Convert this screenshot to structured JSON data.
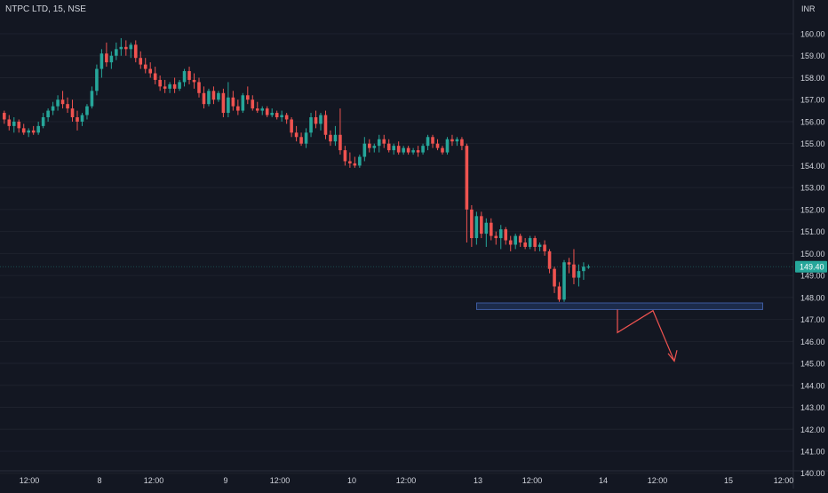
{
  "header": {
    "symbol": "NTPC LTD, 15, NSE",
    "currency": "INR"
  },
  "colors": {
    "background": "#131722",
    "up": "#26a69a",
    "down": "#ef5350",
    "axis_text": "#d1d4dc",
    "grid": "#1e222d",
    "zone_fill": "#1c2b4a",
    "zone_border": "#3d5a9e",
    "arrow": "#ef5350"
  },
  "chart_data": {
    "type": "candlestick",
    "title": "NTPC LTD, 15, NSE",
    "ylabel": "INR",
    "ylim": [
      139.45,
      161.05
    ],
    "yticks": [
      "160.00",
      "159.00",
      "158.00",
      "157.00",
      "156.00",
      "155.00",
      "154.00",
      "153.00",
      "152.00",
      "151.00",
      "150.00",
      "149.00",
      "148.00",
      "147.00",
      "146.00",
      "145.00",
      "144.00",
      "143.00",
      "142.00",
      "141.00",
      "140.00"
    ],
    "xticks": [
      "12:00",
      "8",
      "12:00",
      "9",
      "12:00",
      "10",
      "12:00",
      "13",
      "12:00",
      "14",
      "12:00",
      "15",
      "12:00"
    ],
    "last_price": "149.40",
    "candles_count": 125,
    "ohlc": [
      [
        156.4,
        156.5,
        155.9,
        156.1
      ],
      [
        156.1,
        156.3,
        155.6,
        155.8
      ],
      [
        155.8,
        156.2,
        155.5,
        156.0
      ],
      [
        156.0,
        156.1,
        155.5,
        155.7
      ],
      [
        155.7,
        155.9,
        155.4,
        155.5
      ],
      [
        155.5,
        155.7,
        155.3,
        155.6
      ],
      [
        155.6,
        155.8,
        155.4,
        155.5
      ],
      [
        155.5,
        156.0,
        155.4,
        155.8
      ],
      [
        155.8,
        156.4,
        155.7,
        156.2
      ],
      [
        156.2,
        156.6,
        156.0,
        156.5
      ],
      [
        156.5,
        156.9,
        156.3,
        156.7
      ],
      [
        156.7,
        157.2,
        156.5,
        157.0
      ],
      [
        157.0,
        157.4,
        156.6,
        156.8
      ],
      [
        156.8,
        157.1,
        156.4,
        156.6
      ],
      [
        156.6,
        157.0,
        156.0,
        156.2
      ],
      [
        156.2,
        156.5,
        155.6,
        156.0
      ],
      [
        156.0,
        156.4,
        155.8,
        156.3
      ],
      [
        156.3,
        156.8,
        156.1,
        156.7
      ],
      [
        156.7,
        157.6,
        156.6,
        157.4
      ],
      [
        157.4,
        158.6,
        157.2,
        158.4
      ],
      [
        158.4,
        159.3,
        158.0,
        159.1
      ],
      [
        159.1,
        159.6,
        158.5,
        158.7
      ],
      [
        158.7,
        159.2,
        158.4,
        159.0
      ],
      [
        159.0,
        159.6,
        158.8,
        159.3
      ],
      [
        159.3,
        159.8,
        159.0,
        159.4
      ],
      [
        159.4,
        159.7,
        159.0,
        159.3
      ],
      [
        159.3,
        159.6,
        158.9,
        159.5
      ],
      [
        159.5,
        159.7,
        158.7,
        158.9
      ],
      [
        158.9,
        159.2,
        158.4,
        158.6
      ],
      [
        158.6,
        158.9,
        158.2,
        158.4
      ],
      [
        158.4,
        158.7,
        158.0,
        158.2
      ],
      [
        158.2,
        158.5,
        157.7,
        157.9
      ],
      [
        157.9,
        158.1,
        157.4,
        157.6
      ],
      [
        157.6,
        157.9,
        157.3,
        157.5
      ],
      [
        157.5,
        157.8,
        157.3,
        157.7
      ],
      [
        157.7,
        158.0,
        157.3,
        157.5
      ],
      [
        157.5,
        157.9,
        157.4,
        157.8
      ],
      [
        157.8,
        158.4,
        157.6,
        158.3
      ],
      [
        158.3,
        158.5,
        157.7,
        157.9
      ],
      [
        157.9,
        158.2,
        157.5,
        157.8
      ],
      [
        157.8,
        158.0,
        157.1,
        157.3
      ],
      [
        157.3,
        157.6,
        156.6,
        156.8
      ],
      [
        156.8,
        157.5,
        156.7,
        157.4
      ],
      [
        157.4,
        157.6,
        156.8,
        157.0
      ],
      [
        157.0,
        157.4,
        156.9,
        157.3
      ],
      [
        157.3,
        157.5,
        156.2,
        156.4
      ],
      [
        156.4,
        157.8,
        156.2,
        157.1
      ],
      [
        157.1,
        157.4,
        156.5,
        156.7
      ],
      [
        156.7,
        157.0,
        156.3,
        156.5
      ],
      [
        156.5,
        157.3,
        156.4,
        157.2
      ],
      [
        157.2,
        157.6,
        156.8,
        157.0
      ],
      [
        157.0,
        157.2,
        156.5,
        156.6
      ],
      [
        156.6,
        156.9,
        156.4,
        156.5
      ],
      [
        156.5,
        156.7,
        156.3,
        156.6
      ],
      [
        156.6,
        156.7,
        156.2,
        156.3
      ],
      [
        156.3,
        156.6,
        156.2,
        156.4
      ],
      [
        156.4,
        156.5,
        156.1,
        156.2
      ],
      [
        156.2,
        156.5,
        156.0,
        156.3
      ],
      [
        156.3,
        156.4,
        155.9,
        156.1
      ],
      [
        156.1,
        156.2,
        155.3,
        155.5
      ],
      [
        155.5,
        155.8,
        155.1,
        155.3
      ],
      [
        155.3,
        155.5,
        154.9,
        155.0
      ],
      [
        155.0,
        155.7,
        154.8,
        155.5
      ],
      [
        155.5,
        156.4,
        155.3,
        156.2
      ],
      [
        156.2,
        156.5,
        155.7,
        155.9
      ],
      [
        155.9,
        156.4,
        155.6,
        156.3
      ],
      [
        156.3,
        156.5,
        155.2,
        155.4
      ],
      [
        155.4,
        155.6,
        154.9,
        155.1
      ],
      [
        155.1,
        155.8,
        154.9,
        155.4
      ],
      [
        155.4,
        156.6,
        154.5,
        154.7
      ],
      [
        154.7,
        154.9,
        154.0,
        154.2
      ],
      [
        154.2,
        154.6,
        153.9,
        154.1
      ],
      [
        154.1,
        154.4,
        153.9,
        154.0
      ],
      [
        154.0,
        154.5,
        153.9,
        154.4
      ],
      [
        154.4,
        155.3,
        154.2,
        155.0
      ],
      [
        155.0,
        155.2,
        154.6,
        154.8
      ],
      [
        154.8,
        155.0,
        154.6,
        154.9
      ],
      [
        154.9,
        155.4,
        154.6,
        155.2
      ],
      [
        155.2,
        155.4,
        154.8,
        155.0
      ],
      [
        155.0,
        155.2,
        154.6,
        154.7
      ],
      [
        154.7,
        155.0,
        154.5,
        154.9
      ],
      [
        154.9,
        155.1,
        154.5,
        154.6
      ],
      [
        154.6,
        154.9,
        154.5,
        154.8
      ],
      [
        154.8,
        154.9,
        154.5,
        154.6
      ],
      [
        154.6,
        154.8,
        154.5,
        154.7
      ],
      [
        154.7,
        154.9,
        154.4,
        154.6
      ],
      [
        154.6,
        155.0,
        154.5,
        154.9
      ],
      [
        154.9,
        155.4,
        154.7,
        155.3
      ],
      [
        155.3,
        155.4,
        154.8,
        155.0
      ],
      [
        155.0,
        155.2,
        154.7,
        154.8
      ],
      [
        154.8,
        154.9,
        154.5,
        154.6
      ],
      [
        154.6,
        155.3,
        154.5,
        155.2
      ],
      [
        155.2,
        155.4,
        154.9,
        155.1
      ],
      [
        155.1,
        155.3,
        154.9,
        155.2
      ],
      [
        155.2,
        155.3,
        154.7,
        154.9
      ],
      [
        154.9,
        155.0,
        150.5,
        152.0
      ],
      [
        152.0,
        152.2,
        150.3,
        150.7
      ],
      [
        150.7,
        151.9,
        150.4,
        151.7
      ],
      [
        151.7,
        151.9,
        150.7,
        150.9
      ],
      [
        150.9,
        151.6,
        150.3,
        151.4
      ],
      [
        151.4,
        151.6,
        150.6,
        150.8
      ],
      [
        150.8,
        151.0,
        150.4,
        150.7
      ],
      [
        150.7,
        151.3,
        150.2,
        151.1
      ],
      [
        151.1,
        151.2,
        150.4,
        150.6
      ],
      [
        150.6,
        150.8,
        150.1,
        150.4
      ],
      [
        150.4,
        150.9,
        150.2,
        150.8
      ],
      [
        150.8,
        150.9,
        150.3,
        150.5
      ],
      [
        150.5,
        150.7,
        150.2,
        150.3
      ],
      [
        150.3,
        150.8,
        150.2,
        150.7
      ],
      [
        150.7,
        150.8,
        150.1,
        150.3
      ],
      [
        150.3,
        150.5,
        150.1,
        150.4
      ],
      [
        150.4,
        150.6,
        149.9,
        150.1
      ],
      [
        150.1,
        150.2,
        149.1,
        149.3
      ],
      [
        149.3,
        149.4,
        148.2,
        148.5
      ],
      [
        148.5,
        148.7,
        147.8,
        147.9
      ],
      [
        147.9,
        149.7,
        147.8,
        149.6
      ],
      [
        149.6,
        149.8,
        149.1,
        149.5
      ],
      [
        149.5,
        150.2,
        148.6,
        148.9
      ],
      [
        148.9,
        149.5,
        148.5,
        149.2
      ],
      [
        149.2,
        149.6,
        148.8,
        149.4
      ],
      [
        149.4,
        149.5,
        149.3,
        149.4
      ]
    ],
    "annotations": {
      "support_zone": {
        "from": 147.75,
        "to": 147.45,
        "start_candle": 94,
        "end": "after 15"
      },
      "projection_path": [
        [
          147.45,
          "drop"
        ],
        [
          146.4,
          "low"
        ],
        [
          147.4,
          "retest"
        ],
        [
          145.1,
          "target"
        ]
      ]
    }
  }
}
